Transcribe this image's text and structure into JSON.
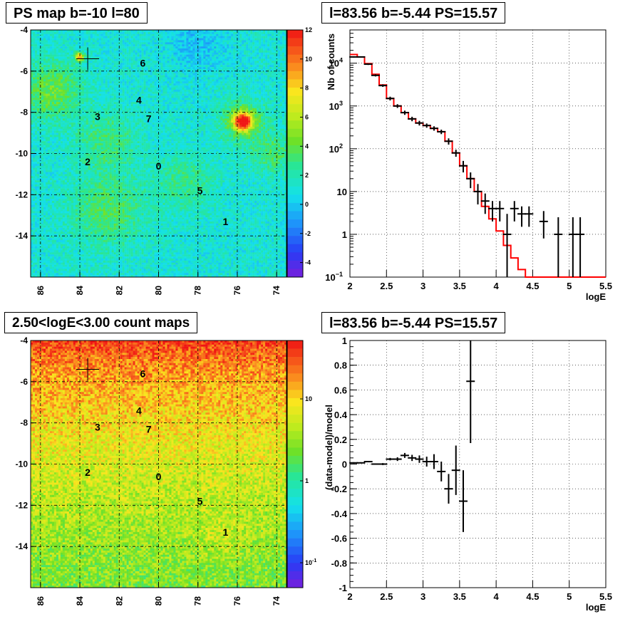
{
  "chart_data": [
    {
      "type": "heatmap",
      "title": "PS map b=-10 l=80",
      "x_ticks": [
        "86",
        "84",
        "82",
        "80",
        "78",
        "76",
        "74"
      ],
      "y_ticks": [
        "-4",
        "-6",
        "-8",
        "-10",
        "-12",
        "-14"
      ],
      "xlim": [
        86.5,
        73.5
      ],
      "ylim": [
        -16,
        -4
      ],
      "grid": true,
      "colorbar": {
        "min": -5,
        "max": 12,
        "ticks": [
          "12",
          "10",
          "8",
          "6",
          "4",
          "2",
          "0",
          "-2",
          "-4"
        ]
      },
      "marker_position": {
        "x": 83.6,
        "y": -5.4
      },
      "hotspot": {
        "x": 75.5,
        "y": -8.8
      },
      "sources": [
        {
          "label": "0",
          "x": 80,
          "y": -10.6
        },
        {
          "label": "1",
          "x": 76.6,
          "y": -13.3
        },
        {
          "label": "2",
          "x": 83.6,
          "y": -10.4
        },
        {
          "label": "3",
          "x": 83.1,
          "y": -8.2
        },
        {
          "label": "4",
          "x": 81,
          "y": -7.4
        },
        {
          "label": "5",
          "x": 77.9,
          "y": -11.8
        },
        {
          "label": "6",
          "x": 80.8,
          "y": -5.6
        },
        {
          "label": "7",
          "x": 80.5,
          "y": -8.3
        }
      ]
    },
    {
      "type": "line",
      "title": "l=83.56 b=-5.44 PS=15.57",
      "xlabel": "logE",
      "ylabel": "Nb of counts",
      "xlim": [
        2,
        5.5
      ],
      "ylim": [
        0.1,
        60000
      ],
      "log_y": true,
      "grid": true,
      "x_ticks": [
        "2",
        "2.5",
        "3",
        "3.5",
        "4",
        "4.5",
        "5",
        "5.5"
      ],
      "y_ticks": [
        {
          "v": 0.1,
          "m": "10",
          "e": "−1"
        },
        {
          "v": 1,
          "m": "1",
          "e": ""
        },
        {
          "v": 10,
          "m": "10",
          "e": ""
        },
        {
          "v": 100,
          "m": "10",
          "e": "2"
        },
        {
          "v": 1000,
          "m": "10",
          "e": "3"
        },
        {
          "v": 10000,
          "m": "10",
          "e": "4"
        }
      ],
      "model_series": {
        "color": "#ff0000",
        "bin_width": 0.1,
        "edges": [
          2.0,
          2.1,
          2.2,
          2.3,
          2.4,
          2.5,
          2.6,
          2.7,
          2.8,
          2.9,
          3.0,
          3.1,
          3.2,
          3.3,
          3.4,
          3.5,
          3.6,
          3.7,
          3.8,
          3.9,
          4.0,
          4.1,
          4.2,
          4.3,
          4.4
        ],
        "values": [
          16000,
          14000,
          9800,
          5500,
          3100,
          1500,
          1000,
          700,
          500,
          400,
          350,
          300,
          250,
          150,
          80,
          40,
          20,
          10,
          4.5,
          2.3,
          1.2,
          0.55,
          0.28,
          0.15,
          0.1
        ]
      },
      "data_series": {
        "color": "#000000",
        "x": [
          2.05,
          2.15,
          2.25,
          2.35,
          2.45,
          2.55,
          2.65,
          2.75,
          2.85,
          2.95,
          3.05,
          3.15,
          3.25,
          3.35,
          3.45,
          3.55,
          3.65,
          3.75,
          3.85,
          3.95,
          4.05,
          4.15,
          4.25,
          4.35,
          4.45,
          4.65,
          4.85,
          5.05,
          5.15
        ],
        "y": [
          14000,
          14000,
          9500,
          5200,
          3000,
          1500,
          1000,
          700,
          500,
          400,
          350,
          300,
          250,
          150,
          80,
          40,
          20,
          10,
          6,
          4,
          4,
          1,
          4,
          3,
          3,
          2,
          1,
          1,
          1
        ],
        "yerr_lo": [
          500,
          500,
          400,
          300,
          200,
          150,
          100,
          80,
          60,
          50,
          40,
          35,
          30,
          25,
          15,
          12,
          8,
          5,
          3,
          2,
          2,
          0.9,
          2,
          1.5,
          1.5,
          1.2,
          0.9,
          0.9,
          0.9
        ],
        "yerr_hi": [
          500,
          500,
          400,
          300,
          200,
          150,
          100,
          80,
          60,
          50,
          40,
          35,
          30,
          25,
          15,
          12,
          8,
          5,
          3,
          2,
          2,
          2,
          2,
          1.5,
          1.5,
          1.5,
          1.5,
          1.5,
          1.5
        ]
      }
    },
    {
      "type": "heatmap",
      "title": "2.50<logE<3.00 count maps",
      "x_ticks": [
        "86",
        "84",
        "82",
        "80",
        "78",
        "76",
        "74"
      ],
      "y_ticks": [
        "-4",
        "-6",
        "-8",
        "-10",
        "-12",
        "-14"
      ],
      "xlim": [
        86.5,
        73.5
      ],
      "ylim": [
        -16,
        -4
      ],
      "grid": true,
      "log_colorbar": true,
      "colorbar": {
        "ticks": [
          "10",
          "1",
          "10"
        ],
        "tick_exponents": [
          "",
          "",
          "-1"
        ]
      },
      "marker_position": {
        "x": 83.6,
        "y": -5.4
      },
      "sources": [
        {
          "label": "0",
          "x": 80,
          "y": -10.6
        },
        {
          "label": "1",
          "x": 76.6,
          "y": -13.3
        },
        {
          "label": "2",
          "x": 83.6,
          "y": -10.4
        },
        {
          "label": "3",
          "x": 83.1,
          "y": -8.2
        },
        {
          "label": "4",
          "x": 81,
          "y": -7.4
        },
        {
          "label": "5",
          "x": 77.9,
          "y": -11.8
        },
        {
          "label": "6",
          "x": 80.8,
          "y": -5.6
        },
        {
          "label": "7",
          "x": 80.5,
          "y": -8.3
        }
      ]
    },
    {
      "type": "scatter",
      "title": "l=83.56 b=-5.44 PS=15.57",
      "xlabel": "logE",
      "ylabel": "(data-model)/model",
      "xlim": [
        2,
        5.5
      ],
      "ylim": [
        -1,
        1
      ],
      "grid": true,
      "x_ticks": [
        "2",
        "2.5",
        "3",
        "3.5",
        "4",
        "4.5",
        "5",
        "5.5"
      ],
      "y_ticks": [
        "-1",
        "-0.8",
        "-0.6",
        "-0.4",
        "-0.2",
        "0",
        "0.2",
        "0.4",
        "0.6",
        "0.8",
        "1"
      ],
      "series": [
        {
          "name": "",
          "x": [
            2.05,
            2.15,
            2.25,
            2.35,
            2.45,
            2.55,
            2.65,
            2.75,
            2.85,
            2.95,
            3.05,
            3.15,
            3.25,
            3.35,
            3.45,
            3.55,
            3.65
          ],
          "y": [
            0.01,
            0.01,
            0.02,
            0.0,
            0.0,
            0.04,
            0.04,
            0.07,
            0.05,
            0.04,
            0.02,
            0.02,
            -0.06,
            -0.2,
            -0.05,
            -0.3,
            0.67
          ],
          "yerr": [
            0.005,
            0.005,
            0.005,
            0.005,
            0.008,
            0.01,
            0.015,
            0.02,
            0.025,
            0.03,
            0.04,
            0.06,
            0.08,
            0.12,
            0.2,
            0.25,
            0.5
          ]
        }
      ]
    }
  ]
}
